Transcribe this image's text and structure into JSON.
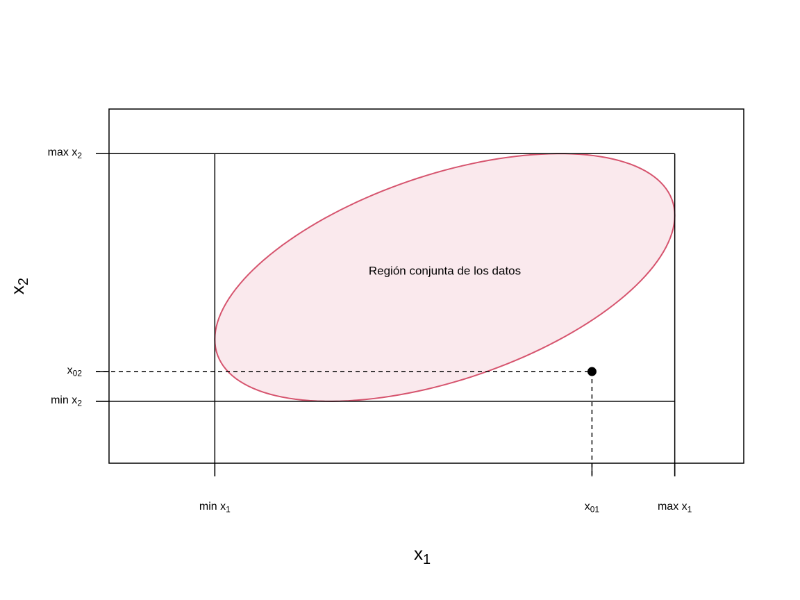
{
  "chart_data": {
    "type": "scatter",
    "title": "",
    "xlabel": {
      "base": "x",
      "sub": "1"
    },
    "ylabel": {
      "base": "x",
      "sub": "2"
    },
    "xlim": [
      -0.23,
      1.15
    ],
    "ylim": [
      -0.25,
      1.18
    ],
    "grid": false,
    "legend": "none",
    "x_ticks": [
      {
        "value": 0,
        "base": "min x",
        "sub": "1"
      },
      {
        "value": 0.82,
        "base": "x",
        "sub": "01"
      },
      {
        "value": 1,
        "base": "max x",
        "sub": "1"
      }
    ],
    "y_ticks": [
      {
        "value": 1,
        "base": "max x",
        "sub": "2"
      },
      {
        "value": 0.12,
        "base": "x",
        "sub": "02"
      },
      {
        "value": 0,
        "base": "min x",
        "sub": "2"
      }
    ],
    "bounding_box": {
      "x": [
        0,
        1
      ],
      "y": [
        0,
        1
      ]
    },
    "region": {
      "label": "Región conjunta de los datos",
      "shape": "ellipse",
      "center": [
        0.5,
        0.5
      ],
      "extent_x": [
        0,
        1
      ],
      "extent_y": [
        0,
        1
      ],
      "touch_points": {
        "left": [
          0,
          0.25
        ],
        "right": [
          1,
          0.75
        ],
        "top": [
          0.75,
          1
        ],
        "bottom": [
          0.25,
          0
        ]
      },
      "fill_color": "#fae9ed",
      "stroke_color": "#d6546e"
    },
    "point": {
      "x": 0.82,
      "y": 0.12,
      "color": "#000000"
    },
    "region_label_position": [
      0.5,
      0.5
    ]
  }
}
